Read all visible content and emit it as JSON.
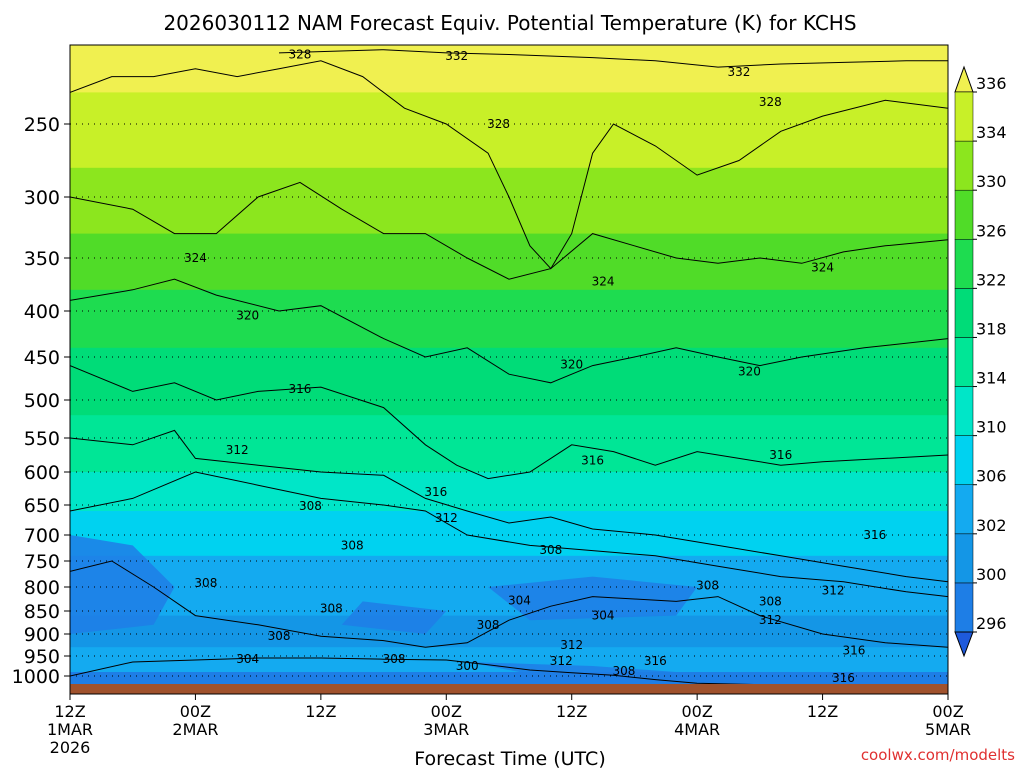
{
  "chart_data": {
    "type": "heatmap",
    "title": "2026030112 NAM Forecast Equiv. Potential Temperature (K) for KCHS",
    "xlabel": "Forecast Time (UTC)",
    "ylabel": "",
    "credit": "coolwx.com/modelts",
    "colors": {
      "ground": "#a0522d",
      "ramp": [
        "#1e5adc",
        "#1e7ee6",
        "#1496e6",
        "#14aaf0",
        "#00d2f0",
        "#00e6c8",
        "#00e696",
        "#00dc78",
        "#1edc50",
        "#50dc28",
        "#8ce61e",
        "#c8f028",
        "#f0f050"
      ]
    },
    "x_ticks": [
      {
        "hour": 0,
        "lines": [
          "12Z",
          "1MAR",
          "2026"
        ]
      },
      {
        "hour": 12,
        "lines": [
          "00Z",
          "2MAR"
        ]
      },
      {
        "hour": 24,
        "lines": [
          "12Z"
        ]
      },
      {
        "hour": 36,
        "lines": [
          "00Z",
          "3MAR"
        ]
      },
      {
        "hour": 48,
        "lines": [
          "12Z"
        ]
      },
      {
        "hour": 60,
        "lines": [
          "00Z",
          "4MAR"
        ]
      },
      {
        "hour": 72,
        "lines": [
          "12Z"
        ]
      },
      {
        "hour": 84,
        "lines": [
          "00Z",
          "5MAR"
        ]
      }
    ],
    "y_ticks": [
      250,
      300,
      350,
      400,
      450,
      500,
      550,
      600,
      650,
      700,
      750,
      800,
      850,
      900,
      950,
      1000
    ],
    "ylim": [
      200,
      1025
    ],
    "xlim": [
      0,
      84
    ],
    "colorbar": {
      "ticks": [
        296,
        300,
        302,
        306,
        310,
        314,
        318,
        322,
        326,
        330,
        334,
        336
      ],
      "bands": [
        296,
        300,
        302,
        306,
        310,
        314,
        318,
        322,
        326,
        330,
        334,
        336
      ]
    },
    "contours": [
      {
        "level": 304,
        "points": [
          [
            0,
            1000
          ],
          [
            6,
            965
          ],
          [
            12,
            960
          ],
          [
            18,
            955
          ],
          [
            24,
            955
          ],
          [
            30,
            958
          ],
          [
            36,
            960
          ],
          [
            40,
            972
          ],
          [
            44,
            985
          ],
          [
            48,
            992
          ],
          [
            52,
            998
          ],
          [
            56,
            1005
          ],
          [
            60,
            1010
          ],
          [
            66,
            1012
          ],
          [
            72,
            1015
          ],
          [
            84,
            1018
          ]
        ]
      },
      {
        "level": 308,
        "points": [
          [
            0,
            770
          ],
          [
            4,
            750
          ],
          [
            8,
            800
          ],
          [
            12,
            860
          ],
          [
            18,
            880
          ],
          [
            24,
            905
          ],
          [
            30,
            915
          ],
          [
            34,
            930
          ],
          [
            38,
            920
          ],
          [
            42,
            870
          ],
          [
            46,
            840
          ],
          [
            50,
            820
          ],
          [
            54,
            825
          ],
          [
            58,
            830
          ],
          [
            62,
            820
          ],
          [
            66,
            860
          ],
          [
            72,
            900
          ],
          [
            78,
            920
          ],
          [
            84,
            930
          ]
        ]
      },
      {
        "level": 308,
        "points": [
          [
            0,
            660
          ],
          [
            6,
            640
          ],
          [
            12,
            600
          ],
          [
            18,
            620
          ],
          [
            24,
            640
          ],
          [
            30,
            650
          ],
          [
            34,
            660
          ],
          [
            38,
            700
          ],
          [
            44,
            720
          ],
          [
            50,
            730
          ],
          [
            56,
            740
          ],
          [
            62,
            760
          ],
          [
            68,
            780
          ],
          [
            74,
            790
          ],
          [
            80,
            810
          ],
          [
            84,
            820
          ]
        ]
      },
      {
        "level": 312,
        "points": [
          [
            0,
            550
          ],
          [
            6,
            560
          ],
          [
            10,
            540
          ],
          [
            12,
            580
          ],
          [
            18,
            590
          ],
          [
            24,
            600
          ],
          [
            30,
            605
          ],
          [
            34,
            640
          ],
          [
            38,
            660
          ],
          [
            42,
            680
          ],
          [
            46,
            670
          ],
          [
            50,
            690
          ],
          [
            56,
            700
          ],
          [
            62,
            720
          ],
          [
            68,
            740
          ],
          [
            74,
            760
          ],
          [
            80,
            780
          ],
          [
            84,
            790
          ]
        ]
      },
      {
        "level": 316,
        "points": [
          [
            0,
            460
          ],
          [
            6,
            490
          ],
          [
            10,
            480
          ],
          [
            14,
            500
          ],
          [
            18,
            490
          ],
          [
            24,
            485
          ],
          [
            30,
            510
          ],
          [
            34,
            560
          ],
          [
            37,
            590
          ],
          [
            40,
            610
          ],
          [
            44,
            600
          ],
          [
            48,
            560
          ],
          [
            52,
            570
          ],
          [
            56,
            590
          ],
          [
            60,
            570
          ],
          [
            64,
            580
          ],
          [
            68,
            590
          ],
          [
            72,
            585
          ],
          [
            78,
            580
          ],
          [
            84,
            575
          ]
        ]
      },
      {
        "level": 320,
        "points": [
          [
            0,
            390
          ],
          [
            6,
            380
          ],
          [
            10,
            370
          ],
          [
            14,
            385
          ],
          [
            20,
            400
          ],
          [
            24,
            395
          ],
          [
            30,
            430
          ],
          [
            34,
            450
          ],
          [
            38,
            440
          ],
          [
            42,
            470
          ],
          [
            46,
            480
          ],
          [
            50,
            460
          ],
          [
            54,
            450
          ],
          [
            58,
            440
          ],
          [
            62,
            450
          ],
          [
            66,
            460
          ],
          [
            70,
            450
          ],
          [
            76,
            440
          ],
          [
            84,
            430
          ]
        ]
      },
      {
        "level": 324,
        "points": [
          [
            0,
            300
          ],
          [
            6,
            310
          ],
          [
            10,
            330
          ],
          [
            14,
            330
          ],
          [
            18,
            300
          ],
          [
            22,
            290
          ],
          [
            26,
            310
          ],
          [
            30,
            330
          ],
          [
            34,
            330
          ],
          [
            38,
            350
          ],
          [
            42,
            370
          ],
          [
            46,
            360
          ],
          [
            50,
            330
          ],
          [
            54,
            340
          ],
          [
            58,
            350
          ],
          [
            62,
            355
          ],
          [
            66,
            350
          ],
          [
            70,
            355
          ],
          [
            74,
            345
          ],
          [
            78,
            340
          ],
          [
            84,
            335
          ]
        ]
      },
      {
        "level": 328,
        "points": [
          [
            0,
            230
          ],
          [
            4,
            220
          ],
          [
            8,
            220
          ],
          [
            12,
            215
          ],
          [
            16,
            220
          ],
          [
            20,
            215
          ],
          [
            24,
            210
          ],
          [
            28,
            220
          ],
          [
            32,
            240
          ],
          [
            36,
            250
          ],
          [
            40,
            270
          ],
          [
            42,
            300
          ],
          [
            44,
            340
          ],
          [
            46,
            360
          ],
          [
            48,
            330
          ],
          [
            50,
            270
          ],
          [
            52,
            250
          ],
          [
            56,
            265
          ],
          [
            60,
            285
          ],
          [
            64,
            275
          ],
          [
            68,
            255
          ],
          [
            72,
            245
          ],
          [
            78,
            235
          ],
          [
            84,
            240
          ]
        ]
      },
      {
        "level": 332,
        "points": [
          [
            20,
            205
          ],
          [
            30,
            203
          ],
          [
            36,
            205
          ],
          [
            42,
            206
          ],
          [
            50,
            208
          ],
          [
            56,
            210
          ],
          [
            62,
            214
          ],
          [
            68,
            212
          ],
          [
            74,
            211
          ],
          [
            80,
            210
          ],
          [
            84,
            210
          ]
        ]
      }
    ],
    "contour_labels": [
      {
        "text": "328",
        "hour": 22,
        "hpa": 206
      },
      {
        "text": "332",
        "hour": 37,
        "hpa": 207
      },
      {
        "text": "332",
        "hour": 64,
        "hpa": 217
      },
      {
        "text": "328",
        "hour": 67,
        "hpa": 236
      },
      {
        "text": "328",
        "hour": 41,
        "hpa": 250
      },
      {
        "text": "324",
        "hour": 12,
        "hpa": 350
      },
      {
        "text": "324",
        "hour": 51,
        "hpa": 372
      },
      {
        "text": "324",
        "hour": 72,
        "hpa": 359
      },
      {
        "text": "320",
        "hour": 17,
        "hpa": 405
      },
      {
        "text": "320",
        "hour": 48,
        "hpa": 459
      },
      {
        "text": "320",
        "hour": 65,
        "hpa": 467
      },
      {
        "text": "316",
        "hour": 22,
        "hpa": 487
      },
      {
        "text": "316",
        "hour": 50,
        "hpa": 583
      },
      {
        "text": "316",
        "hour": 68,
        "hpa": 575
      },
      {
        "text": "316",
        "hour": 35,
        "hpa": 630
      },
      {
        "text": "316",
        "hour": 77,
        "hpa": 700
      },
      {
        "text": "316",
        "hour": 75,
        "hpa": 938
      },
      {
        "text": "316",
        "hour": 56,
        "hpa": 962
      },
      {
        "text": "316",
        "hour": 74,
        "hpa": 1003
      },
      {
        "text": "312",
        "hour": 16,
        "hpa": 568
      },
      {
        "text": "312",
        "hour": 36,
        "hpa": 672
      },
      {
        "text": "312",
        "hour": 73,
        "hpa": 807
      },
      {
        "text": "312",
        "hour": 67,
        "hpa": 870
      },
      {
        "text": "312",
        "hour": 48,
        "hpa": 925
      },
      {
        "text": "312",
        "hour": 47,
        "hpa": 963
      },
      {
        "text": "308",
        "hour": 23,
        "hpa": 652
      },
      {
        "text": "308",
        "hour": 27,
        "hpa": 720
      },
      {
        "text": "308",
        "hour": 46,
        "hpa": 729
      },
      {
        "text": "308",
        "hour": 13,
        "hpa": 792
      },
      {
        "text": "308",
        "hour": 25,
        "hpa": 845
      },
      {
        "text": "308",
        "hour": 20,
        "hpa": 905
      },
      {
        "text": "308",
        "hour": 40,
        "hpa": 880
      },
      {
        "text": "308",
        "hour": 61,
        "hpa": 797
      },
      {
        "text": "308",
        "hour": 67,
        "hpa": 830
      },
      {
        "text": "308",
        "hour": 31,
        "hpa": 958
      },
      {
        "text": "308",
        "hour": 53,
        "hpa": 987
      },
      {
        "text": "304",
        "hour": 43,
        "hpa": 828
      },
      {
        "text": "304",
        "hour": 51,
        "hpa": 860
      },
      {
        "text": "304",
        "hour": 17,
        "hpa": 958
      },
      {
        "text": "300",
        "hour": 38,
        "hpa": 975
      }
    ]
  }
}
